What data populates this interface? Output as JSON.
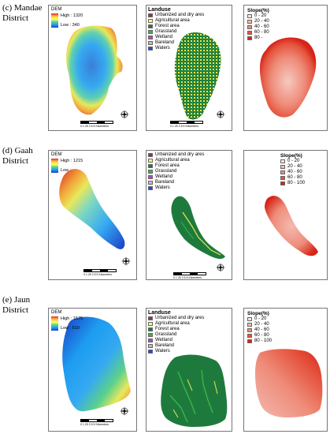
{
  "rows": [
    {
      "label_line1": "(c) Mandae",
      "label_line2": "District",
      "dem": {
        "title": "DEM",
        "high": "High : 1320",
        "low": "Low : 340"
      },
      "landuse": {
        "title": "Landuse",
        "items": [
          "Urbanized and dry ares",
          "Agricultural area",
          "Forest area",
          "Grassland",
          "Wetland",
          "Bareland",
          "Waters"
        ]
      },
      "slope": {
        "title": "Slope(%)",
        "classes": [
          "0 - 20",
          "20 - 40",
          "40 - 60",
          "60 - 80",
          "80 -"
        ]
      },
      "scale_text": "0   1.25   2.5         5 Kilometers"
    },
    {
      "label_line1": "(d) Gaah",
      "label_line2": "District",
      "dem": {
        "title": "DEM",
        "high": "High : 1215",
        "low": "Low :"
      },
      "landuse": {
        "title": "",
        "items": [
          "Urbanized and dry ares",
          "Agricultural area",
          "Forest area",
          "Grassland",
          "Wetland",
          "Bareland",
          "Waters"
        ]
      },
      "slope": {
        "title": "Slope(%)",
        "classes": [
          "0 - 20",
          "20 - 40",
          "40 - 60",
          "60 - 80",
          "80 - 100"
        ]
      },
      "scale_text": "0   1.25   2.5         5 Kilometers"
    },
    {
      "label_line1": "(e) Jaun",
      "label_line2": "District",
      "dem": {
        "title": "DEM",
        "high": "High : 1575",
        "low": "Low : 510"
      },
      "landuse": {
        "title": "Landuse",
        "items": [
          "Urbanized and dry ares",
          "Agricultural area",
          "Forest area",
          "Grassland",
          "Wetland",
          "Bareland",
          "Waters"
        ]
      },
      "slope": {
        "title": "Slope(%)",
        "classes": [
          "0 - 20",
          "20 - 40",
          "40 - 60",
          "60 - 80",
          "80 - 100"
        ]
      },
      "scale_text": "0   1.25   2.5         5 Kilometers"
    }
  ],
  "colors": {
    "landuse": [
      "#8b3a3a",
      "#ffff66",
      "#1e7a3c",
      "#39b54a",
      "#c83cc8",
      "#bdbdbd",
      "#2244ff"
    ],
    "slope": [
      "#fbe3e3",
      "#f4b9b0",
      "#ee8c79",
      "#e5553f",
      "#d62418"
    ]
  }
}
